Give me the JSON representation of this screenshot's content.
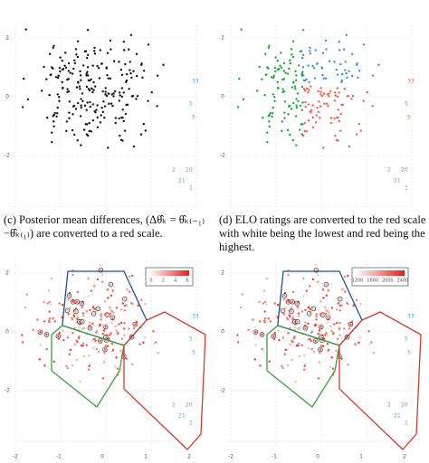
{
  "panels": [
    {
      "yticks": [
        "2",
        "0",
        "-2"
      ],
      "labels": [
        "33",
        "5",
        "5",
        "2",
        "20",
        "21",
        "1"
      ]
    },
    {
      "yticks": [
        "2",
        "0",
        "-2"
      ],
      "labels": [
        "33",
        "5",
        "5",
        "2",
        "20",
        "21",
        "1"
      ]
    },
    {
      "yticks": [
        "2",
        "0",
        "-2"
      ],
      "labels": [
        "33",
        "5",
        "5",
        "2",
        "20",
        "21",
        "1"
      ],
      "legend": [
        "0",
        "2",
        "4",
        "6"
      ]
    },
    {
      "yticks": [
        "2",
        "0",
        "-2"
      ],
      "labels": [
        "33",
        "5",
        "5",
        "2",
        "20",
        "21",
        "1"
      ],
      "legend": [
        "1200",
        "1600",
        "2000",
        "2400"
      ]
    }
  ],
  "xticks": [
    "-2",
    "-1",
    "0",
    "1",
    "2"
  ],
  "captions": {
    "c": "(c) Posterior mean differences, (Δθ̂ₖ = θ̂ₖ₍₋₁₎ −θ̂ₖ₍₁₎) are converted to a red scale.",
    "d": "(d) ELO ratings are converted to the red scale with white being the lowest and red being the highest."
  }
}
